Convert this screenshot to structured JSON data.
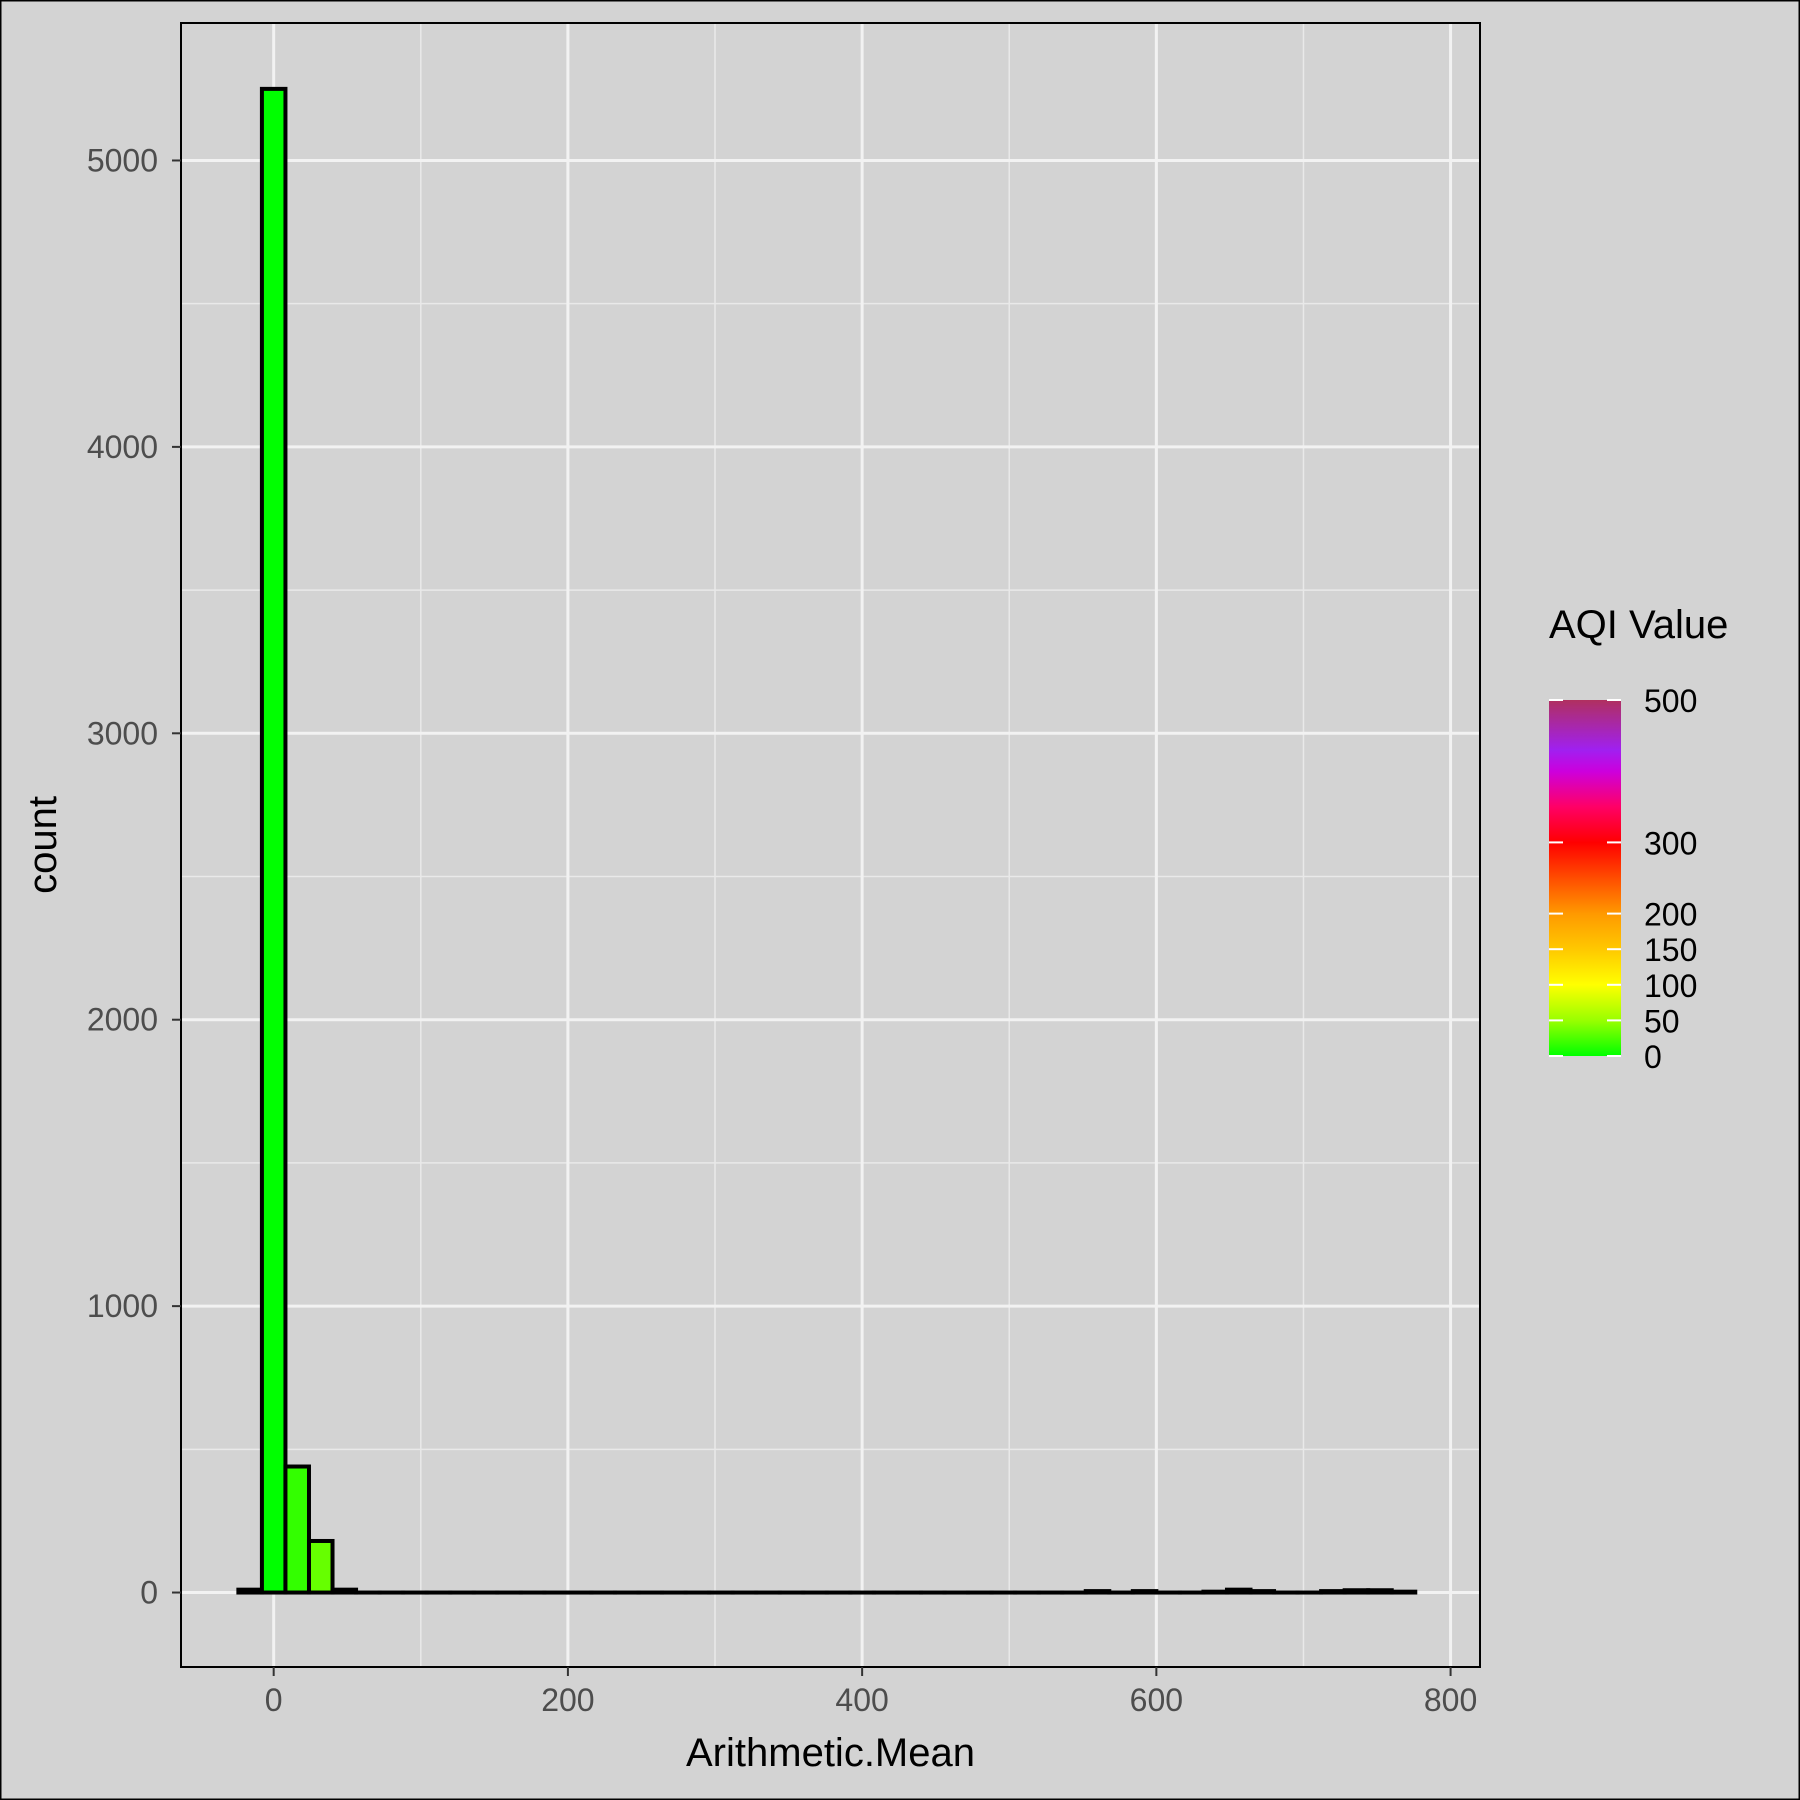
{
  "chart_data": {
    "type": "bar",
    "xlabel": "Arithmetic.Mean",
    "ylabel": "count",
    "xlim": [
      -63,
      820
    ],
    "ylim": [
      -260,
      5480
    ],
    "x_ticks": [
      0,
      200,
      400,
      600,
      800
    ],
    "y_ticks": [
      0,
      1000,
      2000,
      3000,
      4000,
      5000
    ],
    "grid": true,
    "bin_width": 16,
    "bins": [
      {
        "x": -16,
        "count": 10,
        "color": "#00ff00"
      },
      {
        "x": 0,
        "count": 5250,
        "color": "#00ff00"
      },
      {
        "x": 16,
        "count": 440,
        "color": "#33ff00"
      },
      {
        "x": 32,
        "count": 180,
        "color": "#66ff00"
      },
      {
        "x": 48,
        "count": 10,
        "color": "#99ff00"
      },
      {
        "x": 64,
        "count": 0,
        "color": "#ccff00"
      },
      {
        "x": 80,
        "count": 0,
        "color": "#ccff00"
      },
      {
        "x": 96,
        "count": 0,
        "color": "#ffff00"
      },
      {
        "x": 112,
        "count": 0,
        "color": "#ffff00"
      },
      {
        "x": 128,
        "count": 0,
        "color": "#ffee00"
      },
      {
        "x": 144,
        "count": 0,
        "color": "#ffdd00"
      },
      {
        "x": 160,
        "count": 0,
        "color": "#ffcc00"
      },
      {
        "x": 176,
        "count": 0,
        "color": "#ffbb00"
      },
      {
        "x": 192,
        "count": 0,
        "color": "#ffaa00"
      },
      {
        "x": 208,
        "count": 0,
        "color": "#ff9900"
      },
      {
        "x": 224,
        "count": 0,
        "color": "#ff8800"
      },
      {
        "x": 240,
        "count": 0,
        "color": "#ff7700"
      },
      {
        "x": 256,
        "count": 0,
        "color": "#ff6600"
      },
      {
        "x": 272,
        "count": 0,
        "color": "#ff4400"
      },
      {
        "x": 288,
        "count": 0,
        "color": "#ff2200"
      },
      {
        "x": 304,
        "count": 0,
        "color": "#ff0020"
      },
      {
        "x": 320,
        "count": 0,
        "color": "#ff0040"
      },
      {
        "x": 336,
        "count": 0,
        "color": "#ff0060"
      },
      {
        "x": 352,
        "count": 0,
        "color": "#f00090"
      },
      {
        "x": 368,
        "count": 0,
        "color": "#e000c0"
      },
      {
        "x": 384,
        "count": 0,
        "color": "#c000e0"
      },
      {
        "x": 400,
        "count": 0,
        "color": "#a020f0"
      },
      {
        "x": 416,
        "count": 0,
        "color": "#9a30e0"
      },
      {
        "x": 432,
        "count": 0,
        "color": "#9a30d0"
      },
      {
        "x": 448,
        "count": 0,
        "color": "#a030b0"
      },
      {
        "x": 464,
        "count": 0,
        "color": "#a83090"
      },
      {
        "x": 480,
        "count": 0,
        "color": "#ad3080"
      },
      {
        "x": 496,
        "count": 0,
        "color": "#b03070"
      },
      {
        "x": 512,
        "count": 0,
        "color": "#b03060"
      },
      {
        "x": 528,
        "count": 0,
        "color": "#b03060"
      },
      {
        "x": 544,
        "count": 0,
        "color": "#b03060"
      },
      {
        "x": 560,
        "count": 5,
        "color": "#b03060"
      },
      {
        "x": 576,
        "count": 0,
        "color": "#b03060"
      },
      {
        "x": 592,
        "count": 5,
        "color": "#b03060"
      },
      {
        "x": 608,
        "count": 0,
        "color": "#b03060"
      },
      {
        "x": 624,
        "count": 0,
        "color": "#b03060"
      },
      {
        "x": 640,
        "count": 3,
        "color": "#b03060"
      },
      {
        "x": 656,
        "count": 10,
        "color": "#b03060"
      },
      {
        "x": 672,
        "count": 5,
        "color": "#b03060"
      },
      {
        "x": 688,
        "count": 0,
        "color": "#b03060"
      },
      {
        "x": 704,
        "count": 0,
        "color": "#b03060"
      },
      {
        "x": 720,
        "count": 5,
        "color": "#b03060"
      },
      {
        "x": 736,
        "count": 8,
        "color": "#b03060"
      },
      {
        "x": 752,
        "count": 8,
        "color": "#b03060"
      },
      {
        "x": 768,
        "count": 3,
        "color": "#b03060"
      }
    ],
    "legend": {
      "title": "AQI Value",
      "position": "right",
      "range": [
        0,
        500
      ],
      "breaks": [
        {
          "value": 500,
          "label": "500"
        },
        {
          "value": 300,
          "label": "300"
        },
        {
          "value": 200,
          "label": "200"
        },
        {
          "value": 150,
          "label": "150"
        },
        {
          "value": 100,
          "label": "100"
        },
        {
          "value": 50,
          "label": "50"
        },
        {
          "value": 0,
          "label": "0"
        }
      ],
      "gradient": [
        {
          "value": 0,
          "color": "#00ff00"
        },
        {
          "value": 50,
          "color": "#99ff00"
        },
        {
          "value": 100,
          "color": "#ffff00"
        },
        {
          "value": 150,
          "color": "#ffc800"
        },
        {
          "value": 200,
          "color": "#ff9900"
        },
        {
          "value": 300,
          "color": "#ff0000"
        },
        {
          "value": 350,
          "color": "#ff0066"
        },
        {
          "value": 400,
          "color": "#cc00dd"
        },
        {
          "value": 430,
          "color": "#a020f0"
        },
        {
          "value": 500,
          "color": "#b03060"
        }
      ]
    },
    "colors": {
      "panel_background": "#d3d3d3",
      "grid_major": "#f2f2f2",
      "grid_minor": "#e9e9e9",
      "bar_outline": "#000000",
      "tick_text": "#4d4d4d"
    }
  }
}
